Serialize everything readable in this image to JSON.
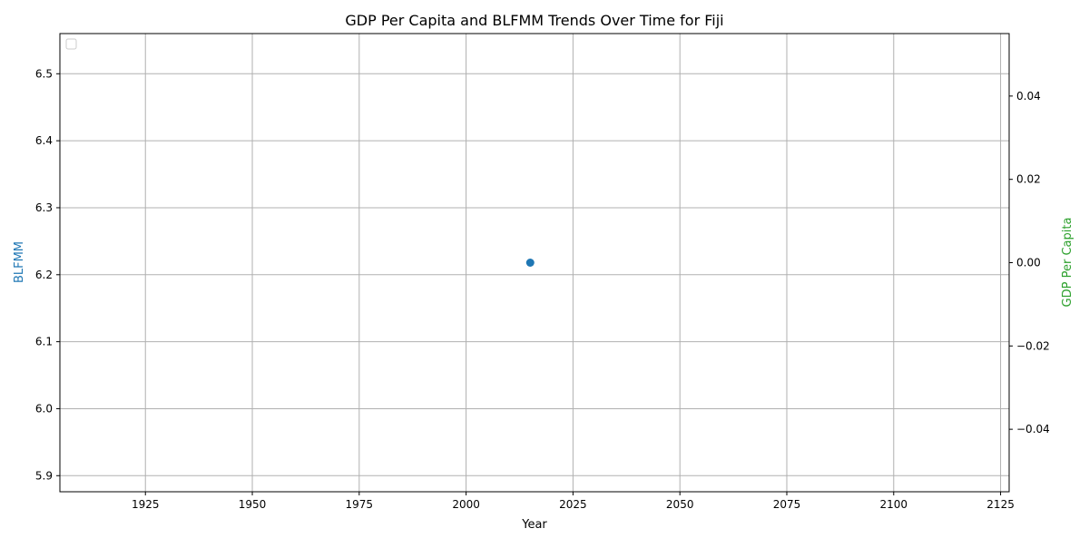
{
  "chart_data": {
    "type": "scatter",
    "title": "GDP Per Capita and BLFMM Trends Over Time for Fiji",
    "xlabel": "Year",
    "xlim": [
      1905,
      2127
    ],
    "x_ticks": [
      1925,
      1950,
      1975,
      2000,
      2025,
      2050,
      2075,
      2100,
      2125
    ],
    "grid": true,
    "legend": {
      "location": "upper-left",
      "entries": []
    },
    "left_axis": {
      "label": "BLFMM",
      "color": "#1f77b4",
      "ylim": [
        5.876,
        6.56
      ],
      "ticks": [
        5.9,
        6.0,
        6.1,
        6.2,
        6.3,
        6.4,
        6.5
      ],
      "tick_labels": [
        "5.9",
        "6.0",
        "6.1",
        "6.2",
        "6.3",
        "6.4",
        "6.5"
      ]
    },
    "right_axis": {
      "label": "GDP Per Capita",
      "color": "#2ca02c",
      "ylim": [
        -0.055,
        0.055
      ],
      "ticks": [
        -0.04,
        -0.02,
        0.0,
        0.02,
        0.04
      ],
      "tick_labels": [
        "−0.04",
        "−0.02",
        "0.00",
        "0.02",
        "0.04"
      ]
    },
    "series": [
      {
        "axis": "left",
        "color": "#1f77b4",
        "marker": "circle",
        "points": [
          {
            "x": 2015,
            "y": 6.218
          }
        ]
      }
    ]
  }
}
